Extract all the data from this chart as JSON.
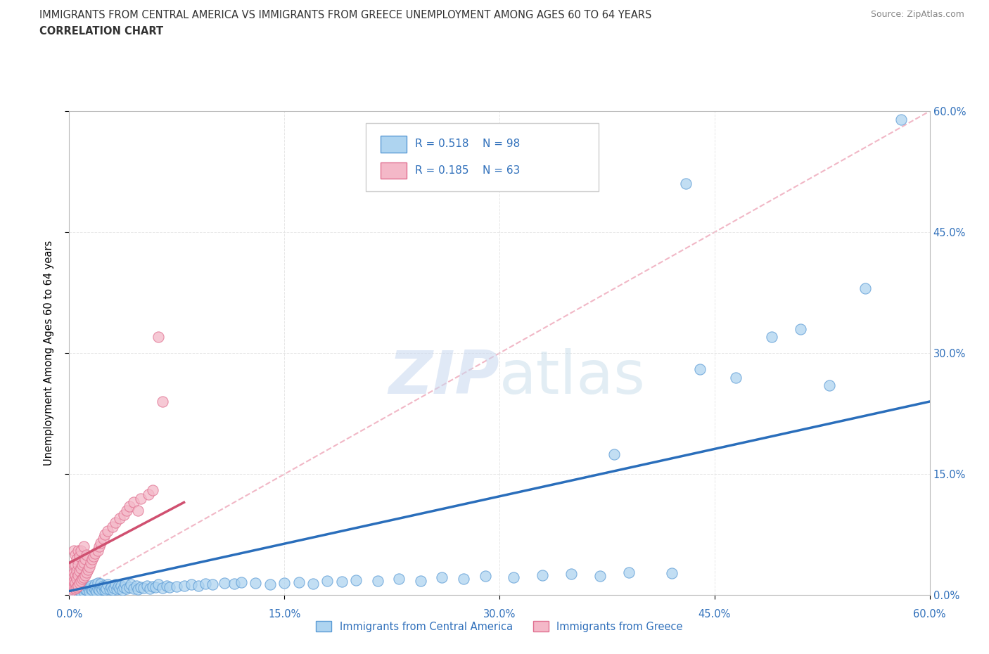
{
  "title_line1": "IMMIGRANTS FROM CENTRAL AMERICA VS IMMIGRANTS FROM GREECE UNEMPLOYMENT AMONG AGES 60 TO 64 YEARS",
  "title_line2": "CORRELATION CHART",
  "source": "Source: ZipAtlas.com",
  "ylabel": "Unemployment Among Ages 60 to 64 years",
  "xlim": [
    0.0,
    0.6
  ],
  "ylim": [
    0.0,
    0.6
  ],
  "xtick_vals": [
    0.0,
    0.15,
    0.3,
    0.45,
    0.6
  ],
  "xtick_labels": [
    "0.0%",
    "15.0%",
    "30.0%",
    "45.0%",
    "60.0%"
  ],
  "ytick_vals": [
    0.0,
    0.15,
    0.3,
    0.45,
    0.6
  ],
  "ytick_labels": [
    "0.0%",
    "15.0%",
    "30.0%",
    "45.0%",
    "60.0%"
  ],
  "blue_R": 0.518,
  "blue_N": 98,
  "pink_R": 0.185,
  "pink_N": 63,
  "blue_fill": "#AED4F0",
  "blue_edge": "#5B9BD5",
  "pink_fill": "#F4B8C8",
  "pink_edge": "#E07090",
  "blue_line_color": "#2A6EBB",
  "pink_line_color": "#D05070",
  "diagonal_color": "#F0B0C0",
  "grid_color": "#E0E0E0",
  "text_color": "#3070BB",
  "legend_label_blue": "Immigrants from Central America",
  "legend_label_pink": "Immigrants from Greece",
  "blue_trend_x0": 0.0,
  "blue_trend_y0": 0.005,
  "blue_trend_x1": 0.6,
  "blue_trend_y1": 0.24,
  "pink_trend_x0": 0.0,
  "pink_trend_y0": 0.04,
  "pink_trend_x1": 0.08,
  "pink_trend_y1": 0.115,
  "blue_x": [
    0.002,
    0.003,
    0.005,
    0.005,
    0.007,
    0.007,
    0.008,
    0.009,
    0.01,
    0.01,
    0.011,
    0.012,
    0.013,
    0.014,
    0.015,
    0.015,
    0.016,
    0.017,
    0.018,
    0.018,
    0.019,
    0.02,
    0.02,
    0.021,
    0.022,
    0.022,
    0.023,
    0.024,
    0.025,
    0.025,
    0.026,
    0.027,
    0.028,
    0.029,
    0.03,
    0.031,
    0.032,
    0.033,
    0.034,
    0.035,
    0.036,
    0.037,
    0.038,
    0.039,
    0.04,
    0.042,
    0.043,
    0.045,
    0.047,
    0.048,
    0.05,
    0.052,
    0.054,
    0.056,
    0.058,
    0.06,
    0.062,
    0.065,
    0.068,
    0.07,
    0.075,
    0.08,
    0.085,
    0.09,
    0.095,
    0.1,
    0.108,
    0.115,
    0.12,
    0.13,
    0.14,
    0.15,
    0.16,
    0.17,
    0.18,
    0.19,
    0.2,
    0.215,
    0.23,
    0.245,
    0.26,
    0.275,
    0.29,
    0.31,
    0.33,
    0.35,
    0.37,
    0.39,
    0.42,
    0.44,
    0.465,
    0.49,
    0.51,
    0.53,
    0.555,
    0.58,
    0.43,
    0.38
  ],
  "blue_y": [
    0.005,
    0.008,
    0.003,
    0.01,
    0.006,
    0.012,
    0.004,
    0.008,
    0.005,
    0.01,
    0.007,
    0.006,
    0.009,
    0.005,
    0.008,
    0.012,
    0.006,
    0.01,
    0.007,
    0.013,
    0.005,
    0.008,
    0.015,
    0.006,
    0.01,
    0.014,
    0.007,
    0.012,
    0.006,
    0.011,
    0.008,
    0.013,
    0.007,
    0.01,
    0.006,
    0.009,
    0.013,
    0.007,
    0.011,
    0.008,
    0.012,
    0.006,
    0.01,
    0.014,
    0.008,
    0.01,
    0.013,
    0.008,
    0.012,
    0.007,
    0.01,
    0.009,
    0.012,
    0.008,
    0.011,
    0.01,
    0.013,
    0.009,
    0.012,
    0.01,
    0.011,
    0.012,
    0.013,
    0.012,
    0.014,
    0.013,
    0.015,
    0.014,
    0.016,
    0.015,
    0.013,
    0.015,
    0.016,
    0.014,
    0.018,
    0.017,
    0.019,
    0.018,
    0.02,
    0.018,
    0.022,
    0.02,
    0.024,
    0.022,
    0.025,
    0.026,
    0.024,
    0.028,
    0.027,
    0.28,
    0.27,
    0.32,
    0.33,
    0.26,
    0.38,
    0.59,
    0.51,
    0.175
  ],
  "pink_x": [
    0.001,
    0.001,
    0.002,
    0.002,
    0.002,
    0.003,
    0.003,
    0.003,
    0.003,
    0.003,
    0.004,
    0.004,
    0.004,
    0.004,
    0.004,
    0.005,
    0.005,
    0.005,
    0.005,
    0.006,
    0.006,
    0.006,
    0.006,
    0.007,
    0.007,
    0.007,
    0.008,
    0.008,
    0.008,
    0.009,
    0.009,
    0.01,
    0.01,
    0.01,
    0.011,
    0.011,
    0.012,
    0.012,
    0.013,
    0.014,
    0.015,
    0.016,
    0.017,
    0.018,
    0.02,
    0.021,
    0.022,
    0.024,
    0.025,
    0.027,
    0.03,
    0.032,
    0.035,
    0.038,
    0.04,
    0.042,
    0.045,
    0.048,
    0.05,
    0.055,
    0.058,
    0.062,
    0.065
  ],
  "pink_y": [
    0.005,
    0.012,
    0.008,
    0.015,
    0.025,
    0.01,
    0.018,
    0.028,
    0.038,
    0.055,
    0.008,
    0.015,
    0.025,
    0.038,
    0.05,
    0.01,
    0.02,
    0.03,
    0.045,
    0.012,
    0.025,
    0.038,
    0.055,
    0.015,
    0.03,
    0.048,
    0.018,
    0.033,
    0.055,
    0.02,
    0.038,
    0.022,
    0.04,
    0.06,
    0.025,
    0.045,
    0.028,
    0.05,
    0.032,
    0.035,
    0.04,
    0.045,
    0.048,
    0.052,
    0.055,
    0.06,
    0.065,
    0.07,
    0.075,
    0.08,
    0.085,
    0.09,
    0.095,
    0.1,
    0.105,
    0.11,
    0.115,
    0.105,
    0.12,
    0.125,
    0.13,
    0.32,
    0.24
  ]
}
